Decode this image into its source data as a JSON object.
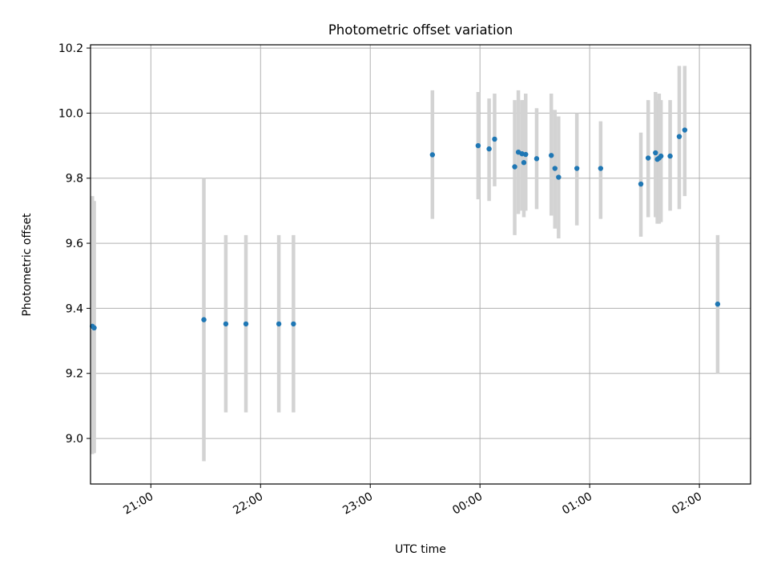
{
  "chart_data": {
    "type": "scatter",
    "title": "Photometric offset variation",
    "xlabel": "UTC time",
    "ylabel": "Photometric offset",
    "grid": true,
    "x_axis": "time",
    "xlim": [
      "20:27",
      "02:28"
    ],
    "ylim": [
      8.86,
      10.21
    ],
    "xticks": [
      "21:00",
      "22:00",
      "23:00",
      "00:00",
      "01:00",
      "02:00"
    ],
    "yticks": [
      "9.0",
      "9.2",
      "9.4",
      "9.6",
      "9.8",
      "10.0",
      "10.2"
    ],
    "colors": {
      "marker": "#1f77b4",
      "errorbar": "#d3d3d3",
      "grid": "#b0b0b0"
    },
    "points": [
      {
        "x": "20:28",
        "y": 9.345,
        "err_low": 8.952,
        "err_high": 9.745
      },
      {
        "x": "20:29",
        "y": 9.34,
        "err_low": 8.955,
        "err_high": 9.73
      },
      {
        "x": "21:29",
        "y": 9.365,
        "err_low": 8.93,
        "err_high": 9.8
      },
      {
        "x": "21:41",
        "y": 9.352,
        "err_low": 9.08,
        "err_high": 9.625
      },
      {
        "x": "21:52",
        "y": 9.352,
        "err_low": 9.08,
        "err_high": 9.625
      },
      {
        "x": "22:10",
        "y": 9.352,
        "err_low": 9.08,
        "err_high": 9.625
      },
      {
        "x": "22:18",
        "y": 9.352,
        "err_low": 9.08,
        "err_high": 9.625
      },
      {
        "x": "23:34",
        "y": 9.872,
        "err_low": 9.675,
        "err_high": 10.07
      },
      {
        "x": "23:59",
        "y": 9.9,
        "err_low": 9.735,
        "err_high": 10.065
      },
      {
        "x": "00:05",
        "y": 9.89,
        "err_low": 9.73,
        "err_high": 10.045
      },
      {
        "x": "00:08",
        "y": 9.92,
        "err_low": 9.775,
        "err_high": 10.06
      },
      {
        "x": "00:19",
        "y": 9.835,
        "err_low": 9.625,
        "err_high": 10.04
      },
      {
        "x": "00:21",
        "y": 9.88,
        "err_low": 9.69,
        "err_high": 10.07
      },
      {
        "x": "00:23",
        "y": 9.875,
        "err_low": 9.7,
        "err_high": 10.04
      },
      {
        "x": "00:24",
        "y": 9.848,
        "err_low": 9.68,
        "err_high": 10.04
      },
      {
        "x": "00:25",
        "y": 9.873,
        "err_low": 9.7,
        "err_high": 10.06
      },
      {
        "x": "00:31",
        "y": 9.86,
        "err_low": 9.705,
        "err_high": 10.015
      },
      {
        "x": "00:39",
        "y": 9.87,
        "err_low": 9.685,
        "err_high": 10.06
      },
      {
        "x": "00:41",
        "y": 9.83,
        "err_low": 9.645,
        "err_high": 10.01
      },
      {
        "x": "00:43",
        "y": 9.803,
        "err_low": 9.615,
        "err_high": 9.99
      },
      {
        "x": "00:53",
        "y": 9.83,
        "err_low": 9.655,
        "err_high": 10.0
      },
      {
        "x": "01:06",
        "y": 9.83,
        "err_low": 9.675,
        "err_high": 9.975
      },
      {
        "x": "01:28",
        "y": 9.782,
        "err_low": 9.62,
        "err_high": 9.94
      },
      {
        "x": "01:32",
        "y": 9.862,
        "err_low": 9.68,
        "err_high": 10.04
      },
      {
        "x": "01:36",
        "y": 9.878,
        "err_low": 9.68,
        "err_high": 10.065
      },
      {
        "x": "01:37",
        "y": 9.858,
        "err_low": 9.66,
        "err_high": 10.04
      },
      {
        "x": "01:38",
        "y": 9.862,
        "err_low": 9.66,
        "err_high": 10.06
      },
      {
        "x": "01:39",
        "y": 9.868,
        "err_low": 9.665,
        "err_high": 10.04
      },
      {
        "x": "01:44",
        "y": 9.868,
        "err_low": 9.7,
        "err_high": 10.04
      },
      {
        "x": "01:49",
        "y": 9.928,
        "err_low": 9.705,
        "err_high": 10.145
      },
      {
        "x": "01:52",
        "y": 9.948,
        "err_low": 9.745,
        "err_high": 10.145
      },
      {
        "x": "02:10",
        "y": 9.413,
        "err_low": 9.2,
        "err_high": 9.625
      }
    ]
  }
}
